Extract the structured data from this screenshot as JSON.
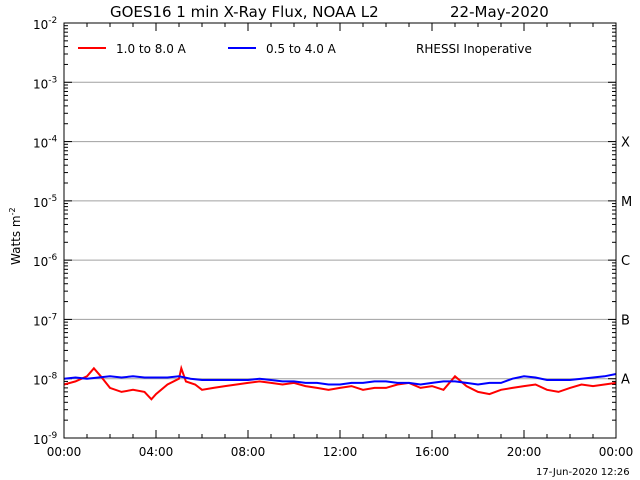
{
  "chart_data": {
    "type": "line",
    "title": "GOES16 1 min X-Ray Flux, NOAA L2",
    "date": "22-May-2020",
    "ylabel": "Watts m",
    "ylabel_sup": "-2",
    "note": "RHESSI Inoperative",
    "footer": "17-Jun-2020 12:26",
    "xlim": [
      0,
      24
    ],
    "ylim_log10": [
      -9,
      -2
    ],
    "y_scale": "log",
    "grid": "horizontal",
    "legend_position": "top-left",
    "x_ticks": [
      {
        "value": 0,
        "label": "00:00"
      },
      {
        "value": 4,
        "label": "04:00"
      },
      {
        "value": 8,
        "label": "08:00"
      },
      {
        "value": 12,
        "label": "12:00"
      },
      {
        "value": 16,
        "label": "16:00"
      },
      {
        "value": 20,
        "label": "20:00"
      },
      {
        "value": 24,
        "label": "00:00"
      }
    ],
    "y_ticks": [
      {
        "exp": -9,
        "base": "10",
        "sup": "-9"
      },
      {
        "exp": -8,
        "base": "10",
        "sup": "-8"
      },
      {
        "exp": -7,
        "base": "10",
        "sup": "-7"
      },
      {
        "exp": -6,
        "base": "10",
        "sup": "-6"
      },
      {
        "exp": -5,
        "base": "10",
        "sup": "-5"
      },
      {
        "exp": -4,
        "base": "10",
        "sup": "-4"
      },
      {
        "exp": -3,
        "base": "10",
        "sup": "-3"
      },
      {
        "exp": -2,
        "base": "10",
        "sup": "-2"
      }
    ],
    "flare_classes": [
      {
        "label": "A",
        "exp": -8
      },
      {
        "label": "B",
        "exp": -7
      },
      {
        "label": "C",
        "exp": -6
      },
      {
        "label": "M",
        "exp": -5
      },
      {
        "label": "X",
        "exp": -4
      }
    ],
    "series": [
      {
        "name": "1.0 to 8.0 A",
        "color": "#ff0000",
        "x": [
          0,
          0.5,
          1,
          1.3,
          1.6,
          2,
          2.5,
          3,
          3.5,
          3.8,
          4,
          4.5,
          5,
          5.1,
          5.3,
          5.7,
          6,
          6.5,
          7,
          7.5,
          8,
          8.5,
          9,
          9.5,
          10,
          10.5,
          11,
          11.5,
          12,
          12.5,
          13,
          13.5,
          14,
          14.5,
          15,
          15.5,
          16,
          16.5,
          17,
          17.5,
          18,
          18.5,
          19,
          19.5,
          20,
          20.5,
          21,
          21.5,
          22,
          22.5,
          23,
          23.5,
          24
        ],
        "y": [
          8e-09,
          9e-09,
          1.1e-08,
          1.5e-08,
          1.1e-08,
          7e-09,
          6e-09,
          6.5e-09,
          6e-09,
          4.5e-09,
          5.5e-09,
          8e-09,
          1e-08,
          1.5e-08,
          9e-09,
          8e-09,
          6.5e-09,
          7e-09,
          7.5e-09,
          8e-09,
          8.5e-09,
          9e-09,
          8.5e-09,
          8e-09,
          8.5e-09,
          7.5e-09,
          7e-09,
          6.5e-09,
          7e-09,
          7.5e-09,
          6.5e-09,
          7e-09,
          7e-09,
          8e-09,
          8.5e-09,
          7e-09,
          7.5e-09,
          6.5e-09,
          1.1e-08,
          7.5e-09,
          6e-09,
          5.5e-09,
          6.5e-09,
          7e-09,
          7.5e-09,
          8e-09,
          6.5e-09,
          6e-09,
          7e-09,
          8e-09,
          7.5e-09,
          8e-09,
          8.5e-09
        ]
      },
      {
        "name": "0.5 to 4.0 A",
        "color": "#0000ff",
        "x": [
          0,
          0.5,
          1,
          1.5,
          2,
          2.5,
          3,
          3.5,
          4,
          4.5,
          5,
          5.5,
          6,
          6.5,
          7,
          7.5,
          8,
          8.5,
          9,
          9.5,
          10,
          10.5,
          11,
          11.5,
          12,
          12.5,
          13,
          13.5,
          14,
          14.5,
          15,
          15.5,
          16,
          16.5,
          17,
          17.5,
          18,
          18.5,
          19,
          19.5,
          20,
          20.5,
          21,
          21.5,
          22,
          22.5,
          23,
          23.5,
          24
        ],
        "y": [
          1e-08,
          1.05e-08,
          1e-08,
          1.05e-08,
          1.1e-08,
          1.05e-08,
          1.1e-08,
          1.05e-08,
          1.05e-08,
          1.05e-08,
          1.1e-08,
          1e-08,
          9.5e-09,
          9.5e-09,
          9.5e-09,
          9.5e-09,
          9.5e-09,
          1e-08,
          9.5e-09,
          9e-09,
          9e-09,
          8.5e-09,
          8.5e-09,
          8e-09,
          8e-09,
          8.5e-09,
          8.5e-09,
          9e-09,
          9e-09,
          8.5e-09,
          8.5e-09,
          8e-09,
          8.5e-09,
          9e-09,
          9e-09,
          8.5e-09,
          8e-09,
          8.5e-09,
          8.5e-09,
          1e-08,
          1.1e-08,
          1.05e-08,
          9.5e-09,
          9.5e-09,
          9.5e-09,
          1e-08,
          1.05e-08,
          1.1e-08,
          1.2e-08
        ]
      }
    ]
  }
}
